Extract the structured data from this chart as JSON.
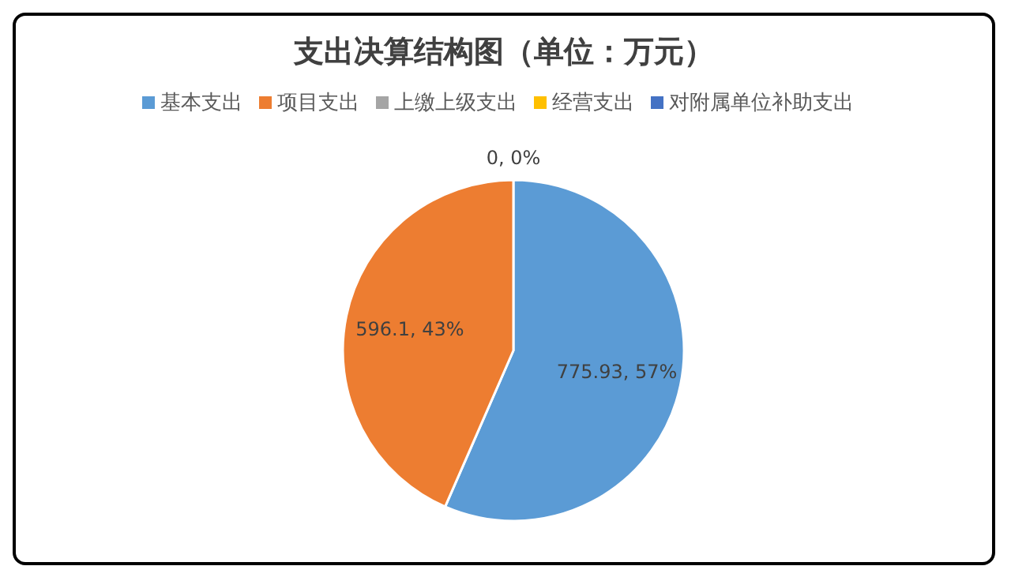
{
  "chart_data": {
    "type": "pie",
    "title": "支出决算结构图（单位：万元）",
    "categories": [
      "基本支出",
      "项目支出",
      "上缴上级支出",
      "经营支出",
      "对附属单位补助支出"
    ],
    "values": [
      775.93,
      596.1,
      0,
      0,
      0
    ],
    "colors": [
      "#5b9bd5",
      "#ed7d31",
      "#a5a5a5",
      "#ffc000",
      "#4472c4"
    ],
    "value_labels": [
      "775.93, 57%",
      "596.1, 43%",
      "0, 0%",
      null,
      null
    ],
    "legend": "top"
  }
}
